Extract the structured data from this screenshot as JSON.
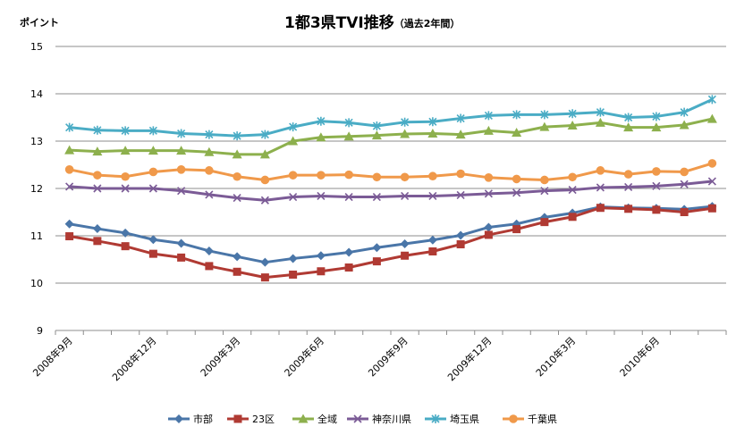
{
  "chart_data": {
    "type": "line",
    "title": "1都3県TVI推移",
    "subtitle": "（過去2年間）",
    "ylabel": "ポイント",
    "xlabel": "",
    "ylim": [
      9,
      15
    ],
    "yticks": [
      9,
      10,
      11,
      12,
      13,
      14,
      15
    ],
    "grid": true,
    "legend_position": "bottom",
    "x": [
      "2008年9月",
      "2008年10月",
      "2008年11月",
      "2008年12月",
      "2009年1月",
      "2009年2月",
      "2009年3月",
      "2009年4月",
      "2009年5月",
      "2009年6月",
      "2009年7月",
      "2009年8月",
      "2009年9月",
      "2009年10月",
      "2009年11月",
      "2009年12月",
      "2010年1月",
      "2010年2月",
      "2010年3月",
      "2010年4月",
      "2010年5月",
      "2010年6月",
      "2010年7月",
      "2010年8月"
    ],
    "xtick_labels": [
      "2008年9月",
      "",
      "",
      "2008年12月",
      "",
      "",
      "2009年3月",
      "",
      "",
      "2009年6月",
      "",
      "",
      "2009年9月",
      "",
      "",
      "2009年12月",
      "",
      "",
      "2010年3月",
      "",
      "",
      "2010年6月",
      "",
      ""
    ],
    "series": [
      {
        "name": "市部",
        "color": "#4a76a8",
        "marker": "diamond",
        "values": [
          11.25,
          11.15,
          11.06,
          10.92,
          10.84,
          10.68,
          10.56,
          10.44,
          10.52,
          10.58,
          10.65,
          10.75,
          10.83,
          10.91,
          11.01,
          11.18,
          11.25,
          11.39,
          11.48,
          11.61,
          11.59,
          11.58,
          11.56,
          11.62
        ]
      },
      {
        "name": "23区",
        "color": "#b03a33",
        "marker": "square",
        "values": [
          10.99,
          10.89,
          10.78,
          10.62,
          10.54,
          10.36,
          10.24,
          10.12,
          10.18,
          10.25,
          10.33,
          10.46,
          10.58,
          10.67,
          10.82,
          11.02,
          11.14,
          11.29,
          11.4,
          11.59,
          11.57,
          11.55,
          11.5,
          11.58
        ]
      },
      {
        "name": "全域",
        "color": "#8db04d",
        "marker": "triangle",
        "values": [
          12.81,
          12.78,
          12.8,
          12.8,
          12.8,
          12.77,
          12.72,
          12.72,
          13.0,
          13.08,
          13.1,
          13.12,
          13.15,
          13.16,
          13.14,
          13.22,
          13.18,
          13.3,
          13.33,
          13.39,
          13.29,
          13.29,
          13.34,
          13.47
        ]
      },
      {
        "name": "神奈川県",
        "color": "#7b5b96",
        "marker": "x",
        "values": [
          12.04,
          12.0,
          12.0,
          12.0,
          11.95,
          11.87,
          11.8,
          11.75,
          11.82,
          11.84,
          11.82,
          11.82,
          11.84,
          11.84,
          11.86,
          11.89,
          11.91,
          11.95,
          11.97,
          12.02,
          12.03,
          12.05,
          12.09,
          12.15
        ]
      },
      {
        "name": "埼玉県",
        "color": "#4aacc5",
        "marker": "star",
        "values": [
          13.29,
          13.23,
          13.22,
          13.22,
          13.16,
          13.14,
          13.11,
          13.14,
          13.3,
          13.42,
          13.39,
          13.32,
          13.4,
          13.41,
          13.48,
          13.54,
          13.56,
          13.56,
          13.58,
          13.61,
          13.5,
          13.52,
          13.61,
          13.88
        ]
      },
      {
        "name": "千葉県",
        "color": "#f0994a",
        "marker": "circle",
        "values": [
          12.4,
          12.28,
          12.25,
          12.35,
          12.4,
          12.38,
          12.25,
          12.18,
          12.28,
          12.28,
          12.29,
          12.24,
          12.24,
          12.26,
          12.31,
          12.23,
          12.2,
          12.18,
          12.24,
          12.38,
          12.3,
          12.36,
          12.35,
          12.53
        ]
      }
    ]
  }
}
